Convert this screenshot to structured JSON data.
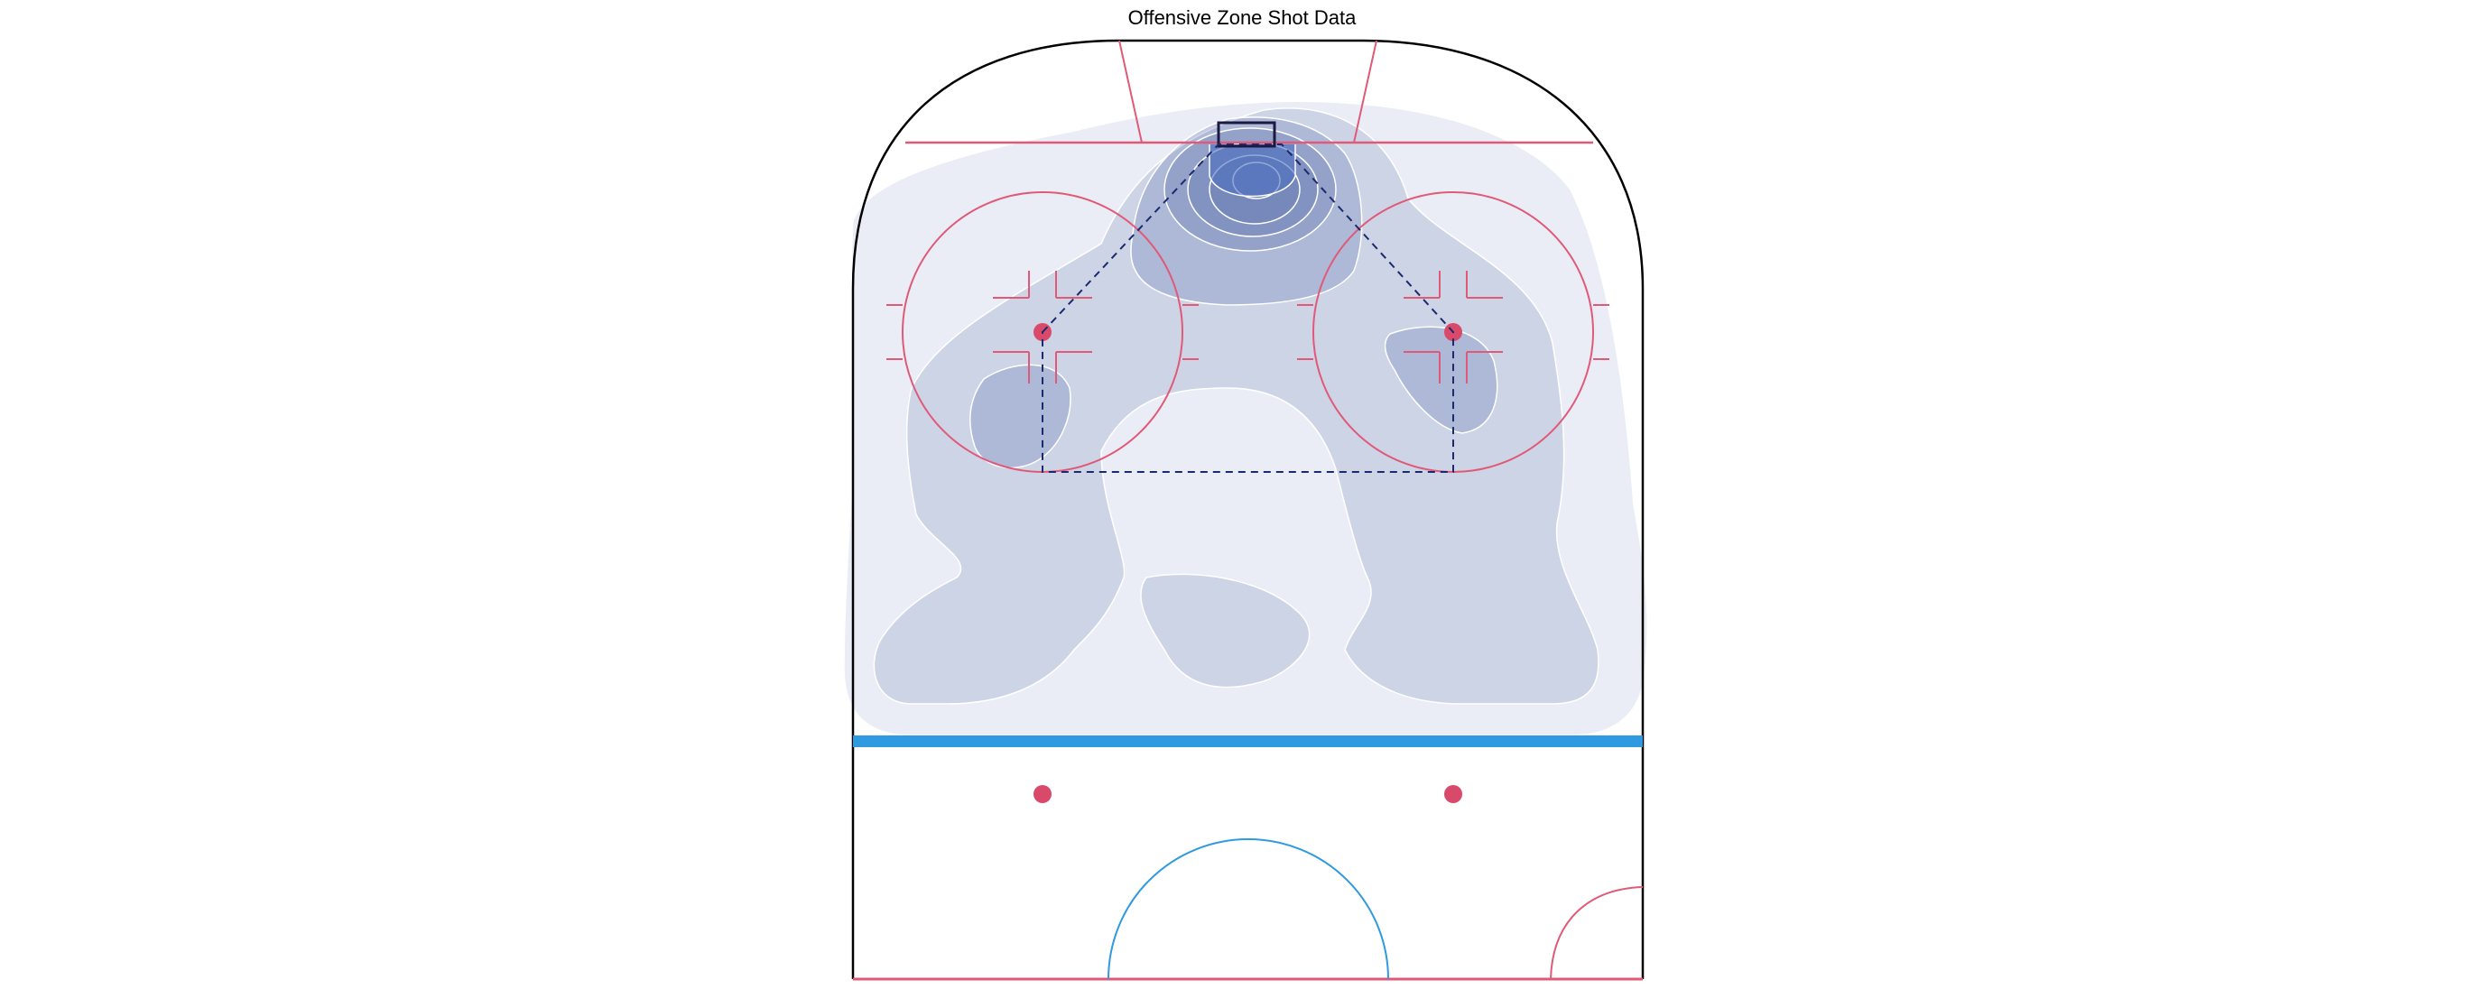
{
  "chart_data": {
    "type": "heatmap",
    "title": "Offensive Zone Shot Data",
    "xlabel": "",
    "ylabel": "",
    "grid": false,
    "legend": "none",
    "colors": {
      "density_fill": "#6b7cb5",
      "contour_line": "#ffffff",
      "rink_outline": "#000000",
      "red_line": "#e05a78",
      "blue_line": "#2f9ae0",
      "faceoff_dot": "#d94a6a",
      "slot_outline": "#1a2a6e",
      "net": "#1a1a40",
      "crease": "#4c6fbf"
    },
    "density_levels": [
      {
        "level": 1,
        "opacity": 0.28
      },
      {
        "level": 2,
        "opacity": 0.45
      },
      {
        "level": 3,
        "opacity": 0.62
      },
      {
        "level": 4,
        "opacity": 0.75
      },
      {
        "level": 5,
        "opacity": 0.85
      },
      {
        "level": 6,
        "opacity": 0.92
      },
      {
        "level": 7,
        "opacity": 0.97
      }
    ],
    "hotspots": [
      {
        "name": "net-front",
        "level": 7
      },
      {
        "name": "left-faceoff-circle",
        "level": 3
      },
      {
        "name": "right-faceoff-circle",
        "level": 3
      },
      {
        "name": "high-slot",
        "level": 2
      }
    ]
  }
}
